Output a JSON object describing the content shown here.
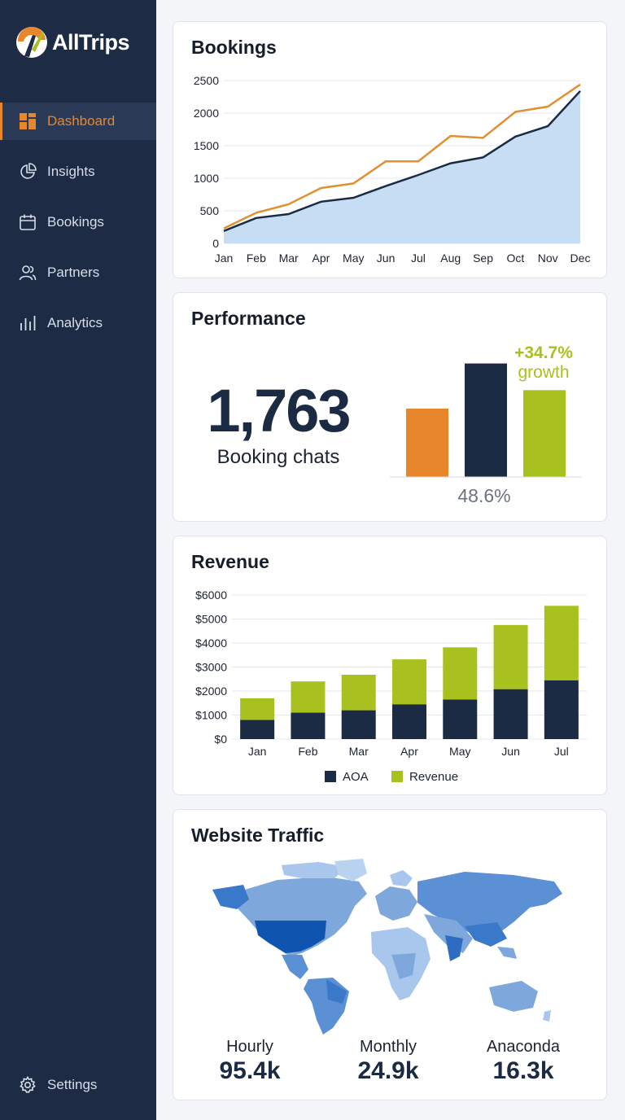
{
  "app": {
    "name": "AllTrips"
  },
  "colors": {
    "sidebar": "#1d2b44",
    "accent": "#e8862b",
    "navy": "#1c2b44",
    "green": "#a8c11f",
    "blue_fill": "#c7ddf4"
  },
  "sidebar": {
    "items": [
      {
        "label": "Dashboard",
        "icon": "dashboard-icon",
        "active": true
      },
      {
        "label": "Insights",
        "icon": "pie-chart-icon"
      },
      {
        "label": "Bookings",
        "icon": "calendar-icon"
      },
      {
        "label": "Partners",
        "icon": "users-icon"
      },
      {
        "label": "Analytics",
        "icon": "bar-chart-icon"
      }
    ],
    "settings": {
      "label": "Settings",
      "icon": "gear-icon"
    }
  },
  "bookings": {
    "title": "Bookings"
  },
  "performance": {
    "title": "Performance",
    "value": "1,763",
    "caption": "Booking chats",
    "growth_value": "+34.7%",
    "growth_label": "growth",
    "bar_caption": "48.6%"
  },
  "revenue": {
    "title": "Revenue"
  },
  "traffic": {
    "title": "Website Traffic",
    "stats": [
      {
        "label": "Hourly",
        "value": "95.4k"
      },
      {
        "label": "Monthly",
        "value": "24.9k"
      },
      {
        "label": "Anaconda",
        "value": "16.3k"
      }
    ]
  },
  "chart_data": [
    {
      "type": "line",
      "title": "Bookings",
      "categories": [
        "Jan",
        "Feb",
        "Mar",
        "Apr",
        "May",
        "Jun",
        "Jul",
        "Aug",
        "Sep",
        "Oct",
        "Nov",
        "Dec"
      ],
      "ylim": [
        0,
        2500
      ],
      "yticks": [
        0,
        500,
        1000,
        1500,
        2000,
        2500
      ],
      "grid": true,
      "series": [
        {
          "values": [
            190,
            390,
            450,
            640,
            700,
            880,
            1050,
            1230,
            1320,
            1640,
            1800,
            2340
          ],
          "color": "#1c2b44",
          "fill": true
        },
        {
          "values": [
            230,
            470,
            600,
            850,
            920,
            1260,
            1260,
            1650,
            1620,
            2020,
            2100,
            2440
          ],
          "color": "#e0902f"
        }
      ]
    },
    {
      "type": "bar",
      "title": "Performance",
      "categories": [
        "",
        "",
        ""
      ],
      "values": [
        1.0,
        1.66,
        1.27
      ],
      "colors": [
        "#e8862b",
        "#1c2b44",
        "#a8c11f"
      ]
    },
    {
      "type": "bar",
      "stacked": true,
      "title": "Revenue",
      "categories": [
        "Jan",
        "Feb",
        "Mar",
        "Apr",
        "May",
        "Jun",
        "Jul"
      ],
      "ylim": [
        0,
        6000
      ],
      "yticks": [
        "$0",
        "$1000",
        "$2000",
        "$3000",
        "$4000",
        "$5000",
        "$6000"
      ],
      "legend": "bottom",
      "series": [
        {
          "name": "AOA",
          "values": [
            800,
            1100,
            1200,
            1450,
            1650,
            2080,
            2450
          ],
          "color": "#1c2b44"
        },
        {
          "name": "Revenue",
          "values": [
            900,
            1300,
            1480,
            1870,
            2170,
            2670,
            3100
          ],
          "color": "#a8c11f"
        }
      ]
    }
  ]
}
